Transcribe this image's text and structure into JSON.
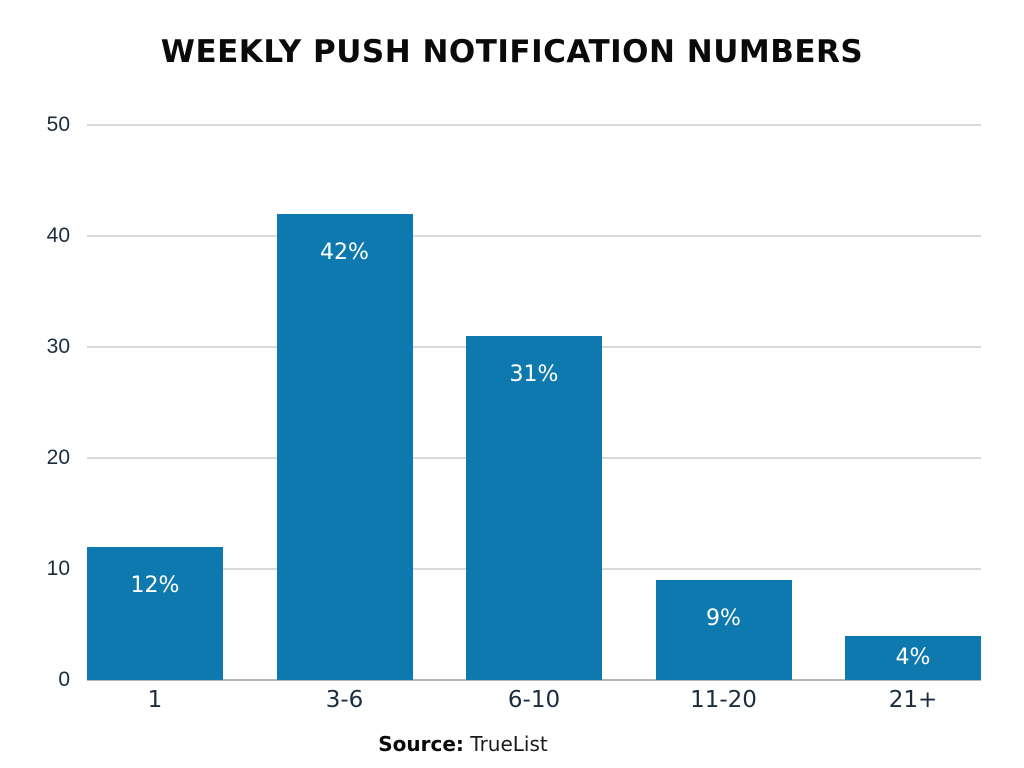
{
  "title": "WEEKLY PUSH NOTIFICATION NUMBERS",
  "source": {
    "label": "Source:",
    "name": "TrueList"
  },
  "chart_data": {
    "type": "bar",
    "title": "WEEKLY PUSH NOTIFICATION NUMBERS",
    "categories": [
      "1",
      "3-6",
      "6-10",
      "11-20",
      "21+"
    ],
    "values": [
      12,
      42,
      31,
      9,
      4
    ],
    "value_labels": [
      "12%",
      "42%",
      "31%",
      "9%",
      "4%"
    ],
    "xlabel": "",
    "ylabel": "",
    "ylim": [
      0,
      50
    ],
    "yticks": [
      0,
      10,
      20,
      30,
      40,
      50
    ],
    "grid": "horizontal",
    "legend": "none",
    "colors": {
      "bar": "#0E79AE",
      "value_label": "#FFFFFF",
      "axis_text": "#1B2C3F",
      "gridline": "#D7DADD",
      "baseline": "#B2B6BA",
      "title_text": "#0A0A0A"
    }
  }
}
